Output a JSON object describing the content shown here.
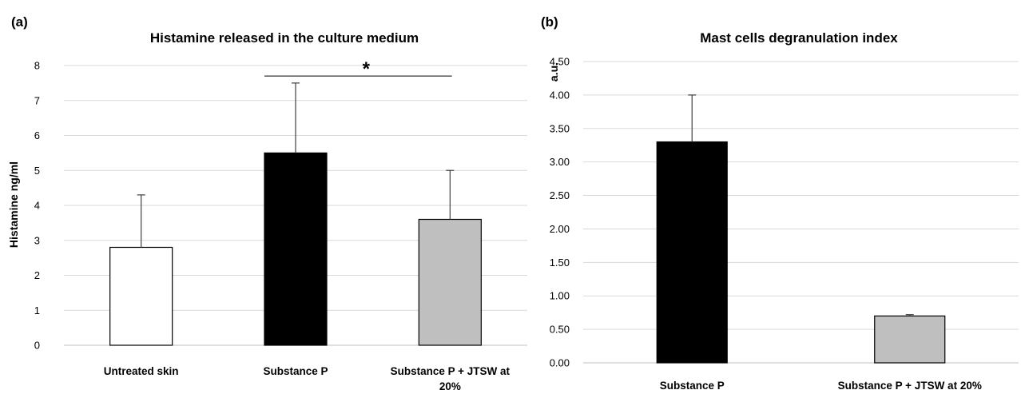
{
  "chart_data": [
    {
      "type": "bar",
      "panel_label": "(a)",
      "title": "Histamine released in the culture medium",
      "ylabel": "Histamine ng/ml",
      "xlabel": "",
      "ylim": [
        0,
        8
      ],
      "yticks": [
        "0",
        "1",
        "2",
        "3",
        "4",
        "5",
        "6",
        "7",
        "8"
      ],
      "grid": true,
      "categories": [
        [
          "Untreated skin"
        ],
        [
          "Substance P"
        ],
        [
          "Substance P  + JTSW at",
          "20%"
        ]
      ],
      "values": [
        2.8,
        5.5,
        3.6
      ],
      "errors": [
        1.5,
        2.0,
        1.4
      ],
      "colors": [
        "#ffffff",
        "#000000",
        "#bfbfbf"
      ],
      "significance": {
        "from": 1,
        "to": 2,
        "level": 7.7,
        "label": "*"
      }
    },
    {
      "type": "bar",
      "panel_label": "(b)",
      "title": "Mast cells degranulation index",
      "ylabel": "a.u.",
      "xlabel": "",
      "ylim": [
        0,
        4.5
      ],
      "yticks": [
        "0.00",
        "0.50",
        "1.00",
        "1.50",
        "2.00",
        "2.50",
        "3.00",
        "3.50",
        "4.00",
        "4.50"
      ],
      "grid": true,
      "categories": [
        [
          "Substance P"
        ],
        [
          "Substance P  + JTSW at 20%"
        ]
      ],
      "values": [
        3.3,
        0.7
      ],
      "errors": [
        0.7,
        0.02
      ],
      "colors": [
        "#000000",
        "#bfbfbf"
      ]
    }
  ]
}
